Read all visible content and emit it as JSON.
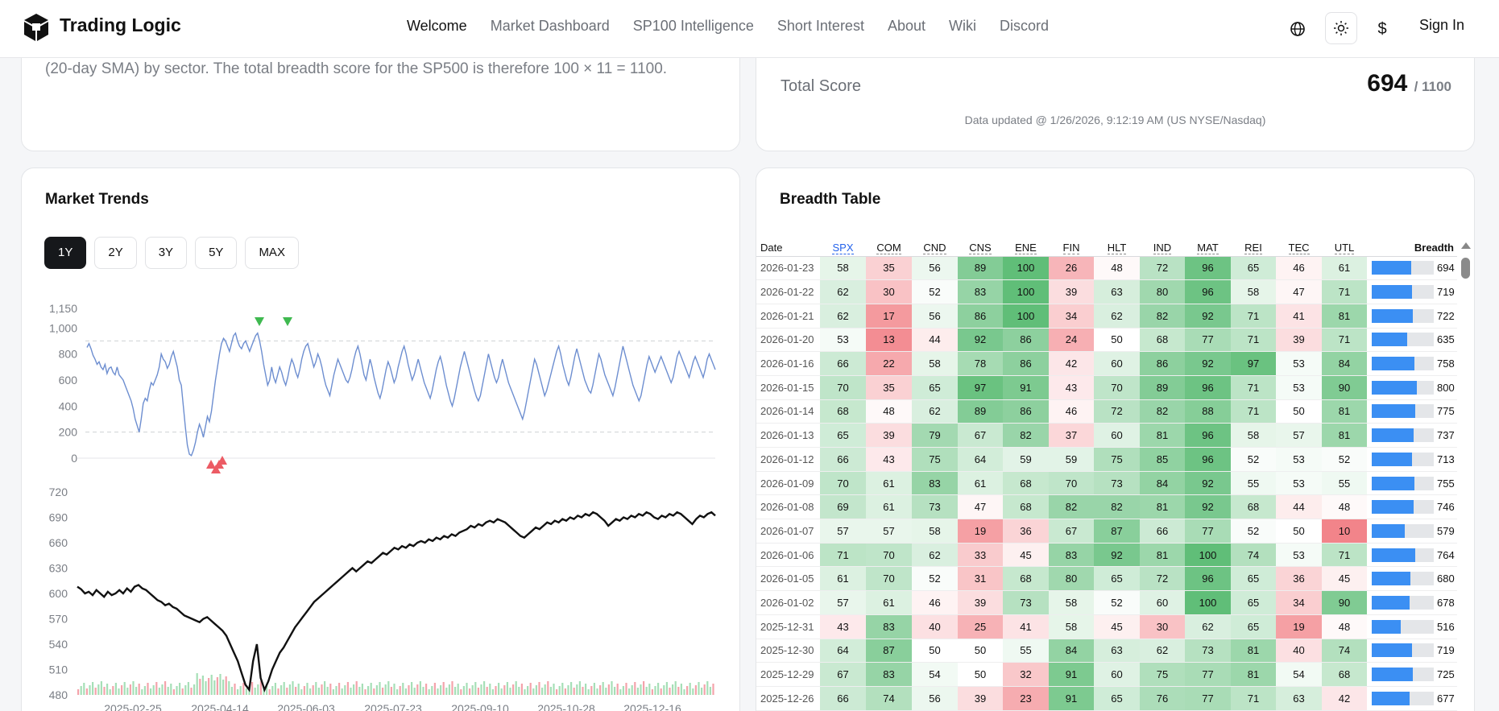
{
  "nav": {
    "brand": "Trading Logic",
    "links": [
      {
        "label": "Welcome",
        "active": true
      },
      {
        "label": "Market Dashboard",
        "active": false
      },
      {
        "label": "SP100 Intelligence",
        "active": false
      },
      {
        "label": "Short Interest",
        "active": false
      },
      {
        "label": "About",
        "active": false
      },
      {
        "label": "Wiki",
        "active": false
      },
      {
        "label": "Discord",
        "active": false
      }
    ],
    "icons": [
      "globe-icon",
      "sun-icon",
      "dollar-icon"
    ],
    "dollar_glyph": "$",
    "sign_in": "Sign In"
  },
  "intro": {
    "text": "(20-day SMA) by sector. The total breadth score for the SP500 is therefore 100 × 11 = 1100."
  },
  "score": {
    "label": "Total Score",
    "value": "694",
    "max": "/ 1100",
    "updated": "Data updated @ 1/26/2026, 9:12:19 AM (US NYSE/Nasdaq)"
  },
  "trends": {
    "title": "Market Trends",
    "ranges": [
      {
        "label": "1Y",
        "active": true
      },
      {
        "label": "2Y",
        "active": false
      },
      {
        "label": "3Y",
        "active": false
      },
      {
        "label": "5Y",
        "active": false
      },
      {
        "label": "MAX",
        "active": false
      }
    ]
  },
  "chart_data": [
    {
      "type": "line",
      "series": [
        {
          "values": [
            850,
            880,
            840,
            790,
            760,
            720,
            740,
            700,
            680,
            720,
            650,
            690,
            700,
            660,
            640,
            700,
            640,
            620,
            600,
            560,
            520,
            480,
            440,
            380,
            300,
            250,
            200,
            300,
            420,
            460,
            440,
            520,
            580,
            560,
            600,
            640,
            700,
            800,
            760,
            740,
            690,
            720,
            780,
            820,
            760,
            700,
            600,
            560,
            400,
            240,
            100,
            30,
            20,
            60,
            120,
            200,
            260,
            220,
            160,
            240,
            320,
            280,
            360,
            480,
            600,
            700,
            800,
            880,
            920,
            900,
            860,
            820,
            880,
            940,
            960,
            900,
            860,
            840,
            880,
            900,
            860,
            820,
            860,
            900,
            940,
            960,
            900,
            820,
            720,
            640,
            560,
            600,
            700,
            620,
            580,
            640,
            700,
            660,
            600,
            560,
            620,
            700,
            760,
            720,
            660,
            620,
            680,
            760,
            820,
            860,
            880,
            820,
            760,
            700,
            740,
            800,
            760,
            700,
            620,
            560,
            520,
            480,
            560,
            640,
            700,
            760,
            720,
            680,
            640,
            600,
            580,
            620,
            680,
            760,
            820,
            860,
            800,
            720,
            640,
            600,
            680,
            760,
            700,
            620,
            560,
            500,
            460,
            520,
            600,
            680,
            740,
            700,
            640,
            580,
            620,
            700,
            760,
            820,
            860,
            800,
            720,
            660,
            600,
            640,
            700,
            760,
            700,
            640,
            580,
            540,
            500,
            460,
            520,
            600,
            680,
            740,
            780,
            720,
            640,
            560,
            500,
            440,
            400,
            460,
            540,
            620,
            700,
            760,
            820,
            760,
            700,
            640,
            580,
            520,
            470,
            440,
            480,
            560,
            640,
            720,
            800,
            740,
            680,
            620,
            580,
            620,
            700,
            760,
            700,
            640,
            580,
            540,
            500,
            460,
            420,
            380,
            340,
            300,
            360,
            440,
            520,
            600,
            680,
            760,
            720,
            660,
            600,
            540,
            480,
            520,
            580,
            640,
            700,
            760,
            820,
            860,
            800,
            720,
            660,
            600,
            560,
            620,
            700,
            780,
            840,
            780,
            720,
            660,
            600,
            560,
            520,
            500,
            560,
            640,
            720,
            800,
            760,
            700,
            640,
            600,
            560,
            520,
            480,
            540,
            620,
            700,
            780,
            860,
            800,
            740,
            680,
            620,
            560,
            520,
            480,
            440,
            480,
            560,
            640,
            720,
            780,
            740,
            700,
            660,
            700,
            740,
            780,
            740,
            700,
            660,
            620,
            580,
            620,
            700,
            780,
            820,
            780,
            740,
            700,
            660,
            620,
            680,
            740,
            780,
            740,
            700,
            660,
            620,
            680,
            760,
            800,
            760,
            720,
            680
          ]
        }
      ],
      "ylim": [
        0,
        1150
      ],
      "yticks": [
        "1,150",
        "1,000",
        "800",
        "600",
        "400",
        "200",
        "0"
      ],
      "reference_lines": [
        200,
        900
      ],
      "markers_down": [
        [
          77,
          1010
        ],
        [
          85,
          1010
        ]
      ],
      "markers_up": [
        [
          52,
          -20
        ],
        [
          54,
          -20
        ],
        [
          56,
          -20
        ]
      ]
    },
    {
      "type": "line",
      "series": [
        {
          "values": [
            608,
            605,
            600,
            602,
            598,
            604,
            600,
            596,
            602,
            598,
            600,
            604,
            600,
            606,
            602,
            608,
            610,
            606,
            604,
            600,
            596,
            592,
            590,
            586,
            588,
            584,
            582,
            578,
            574,
            572,
            570,
            568,
            566,
            570,
            572,
            568,
            564,
            560,
            556,
            550,
            540,
            530,
            520,
            506,
            492,
            486,
            520,
            540,
            500,
            486,
            496,
            510,
            520,
            530,
            536,
            544,
            552,
            560,
            566,
            572,
            578,
            584,
            590,
            594,
            598,
            602,
            606,
            610,
            614,
            618,
            622,
            626,
            630,
            626,
            630,
            634,
            638,
            636,
            640,
            644,
            648,
            646,
            650,
            654,
            652,
            656,
            654,
            658,
            656,
            660,
            662,
            660,
            664,
            662,
            666,
            664,
            668,
            666,
            670,
            668,
            672,
            674,
            676,
            680,
            678,
            682,
            680,
            684,
            686,
            684,
            688,
            686,
            684,
            680,
            676,
            672,
            668,
            666,
            670,
            674,
            678,
            676,
            680,
            684,
            682,
            686,
            684,
            688,
            686,
            690,
            688,
            692,
            690,
            694,
            692,
            696,
            694,
            690,
            686,
            680,
            684,
            688,
            686,
            690,
            688,
            692,
            690,
            694,
            692,
            696,
            694,
            690,
            688,
            692,
            690,
            694,
            692,
            696,
            694,
            690,
            686,
            682,
            688,
            692,
            690,
            694,
            696,
            692
          ]
        }
      ],
      "ylim": [
        480,
        720
      ],
      "yticks": [
        "720",
        "690",
        "660",
        "630",
        "600",
        "570",
        "540",
        "510",
        "480"
      ],
      "xticks": [
        "2025-02-25",
        "2025-04-14",
        "2025-06-03",
        "2025-07-23",
        "2025-09-10",
        "2025-10-28",
        "2025-12-16"
      ]
    }
  ],
  "table": {
    "title": "Breadth Table",
    "headers": [
      "Date",
      "SPX",
      "COM",
      "CND",
      "CNS",
      "ENE",
      "FIN",
      "HLT",
      "IND",
      "MAT",
      "REI",
      "TEC",
      "UTL",
      "Breadth"
    ],
    "breadth_max": 1100,
    "rows": [
      {
        "date": "2026-01-23",
        "vals": [
          58,
          35,
          56,
          89,
          100,
          26,
          48,
          72,
          96,
          65,
          46,
          61
        ],
        "breadth": 694
      },
      {
        "date": "2026-01-22",
        "vals": [
          62,
          30,
          52,
          83,
          100,
          39,
          63,
          80,
          96,
          58,
          47,
          71
        ],
        "breadth": 719
      },
      {
        "date": "2026-01-21",
        "vals": [
          62,
          17,
          56,
          86,
          100,
          34,
          62,
          82,
          92,
          71,
          41,
          81
        ],
        "breadth": 722
      },
      {
        "date": "2026-01-20",
        "vals": [
          53,
          13,
          44,
          92,
          86,
          24,
          50,
          68,
          77,
          71,
          39,
          71
        ],
        "breadth": 635
      },
      {
        "date": "2026-01-16",
        "vals": [
          66,
          22,
          58,
          78,
          86,
          42,
          60,
          86,
          92,
          97,
          53,
          84
        ],
        "breadth": 758
      },
      {
        "date": "2026-01-15",
        "vals": [
          70,
          35,
          65,
          97,
          91,
          43,
          70,
          89,
          96,
          71,
          53,
          90
        ],
        "breadth": 800
      },
      {
        "date": "2026-01-14",
        "vals": [
          68,
          48,
          62,
          89,
          86,
          46,
          72,
          82,
          88,
          71,
          50,
          81
        ],
        "breadth": 775
      },
      {
        "date": "2026-01-13",
        "vals": [
          65,
          39,
          79,
          67,
          82,
          37,
          60,
          81,
          96,
          58,
          57,
          81
        ],
        "breadth": 737
      },
      {
        "date": "2026-01-12",
        "vals": [
          66,
          43,
          75,
          64,
          59,
          59,
          75,
          85,
          96,
          52,
          53,
          52
        ],
        "breadth": 713
      },
      {
        "date": "2026-01-09",
        "vals": [
          70,
          61,
          83,
          61,
          68,
          70,
          73,
          84,
          92,
          55,
          53,
          55
        ],
        "breadth": 755
      },
      {
        "date": "2026-01-08",
        "vals": [
          69,
          61,
          73,
          47,
          68,
          82,
          82,
          81,
          92,
          68,
          44,
          48
        ],
        "breadth": 746
      },
      {
        "date": "2026-01-07",
        "vals": [
          57,
          57,
          58,
          19,
          36,
          67,
          87,
          66,
          77,
          52,
          50,
          10
        ],
        "breadth": 579
      },
      {
        "date": "2026-01-06",
        "vals": [
          71,
          70,
          62,
          33,
          45,
          83,
          92,
          81,
          100,
          74,
          53,
          71
        ],
        "breadth": 764
      },
      {
        "date": "2026-01-05",
        "vals": [
          61,
          70,
          52,
          31,
          68,
          80,
          65,
          72,
          96,
          65,
          36,
          45
        ],
        "breadth": 680
      },
      {
        "date": "2026-01-02",
        "vals": [
          57,
          61,
          46,
          39,
          73,
          58,
          52,
          60,
          100,
          65,
          34,
          90
        ],
        "breadth": 678
      },
      {
        "date": "2025-12-31",
        "vals": [
          43,
          83,
          40,
          25,
          41,
          58,
          45,
          30,
          62,
          65,
          19,
          48
        ],
        "breadth": 516
      },
      {
        "date": "2025-12-30",
        "vals": [
          64,
          87,
          50,
          50,
          55,
          84,
          63,
          62,
          73,
          81,
          40,
          74
        ],
        "breadth": 719
      },
      {
        "date": "2025-12-29",
        "vals": [
          67,
          83,
          54,
          50,
          32,
          91,
          60,
          75,
          77,
          81,
          54,
          68
        ],
        "breadth": 725
      },
      {
        "date": "2025-12-26",
        "vals": [
          66,
          74,
          56,
          39,
          23,
          91,
          65,
          76,
          77,
          71,
          63,
          42
        ],
        "breadth": 677
      }
    ]
  }
}
